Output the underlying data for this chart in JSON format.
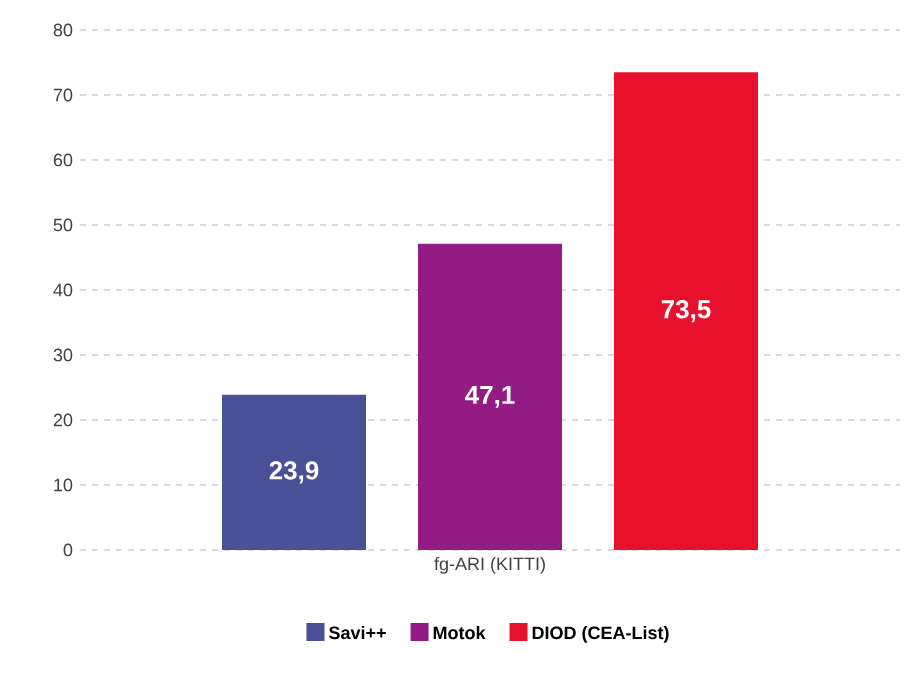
{
  "chart_data": {
    "type": "bar",
    "categories": [
      "fg-ARI (KITTI)"
    ],
    "series": [
      {
        "name": "Savi++",
        "color": "#4a5096",
        "values": [
          23.9
        ],
        "value_labels": [
          "23,9"
        ]
      },
      {
        "name": "Motok",
        "color": "#921b84",
        "values": [
          47.1
        ],
        "value_labels": [
          "47,1"
        ]
      },
      {
        "name": "DIOD (CEA-List)",
        "color": "#e8112d",
        "values": [
          73.5
        ],
        "value_labels": [
          "73,5"
        ]
      }
    ],
    "ylim": [
      0,
      80
    ],
    "yticks": [
      0,
      10,
      20,
      30,
      40,
      50,
      60,
      70,
      80
    ],
    "grid": "y",
    "legend": "bottom"
  }
}
